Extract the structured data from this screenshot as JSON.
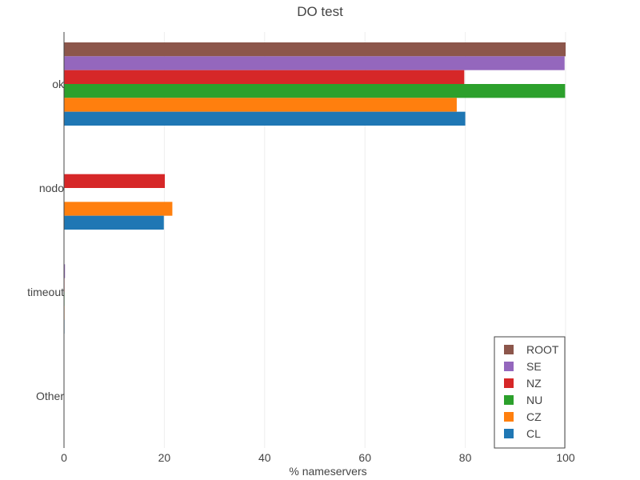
{
  "chart_data": {
    "type": "bar",
    "orientation": "horizontal",
    "title": "DO test",
    "xlabel": "% nameservers",
    "ylabel": "",
    "xlim": [
      0,
      100
    ],
    "x_ticks": [
      0,
      20,
      40,
      60,
      80,
      100
    ],
    "categories": [
      "ok",
      "nodo",
      "timeout",
      "Other"
    ],
    "grid": "vertical",
    "legend_position": "bottom-right",
    "series": [
      {
        "name": "ROOT",
        "color": "#8c564b",
        "values": [
          100,
          0,
          0,
          0
        ]
      },
      {
        "name": "SE",
        "color": "#9467bd",
        "values": [
          99.8,
          0,
          0.2,
          0
        ]
      },
      {
        "name": "NZ",
        "color": "#d62728",
        "values": [
          79.8,
          20.1,
          0.1,
          0.05
        ]
      },
      {
        "name": "NU",
        "color": "#2ca02c",
        "values": [
          99.9,
          0,
          0.1,
          0
        ]
      },
      {
        "name": "CZ",
        "color": "#ff7f0e",
        "values": [
          78.3,
          21.6,
          0.1,
          0
        ]
      },
      {
        "name": "CL",
        "color": "#1f77b4",
        "values": [
          80.0,
          19.9,
          0.1,
          0
        ]
      }
    ]
  }
}
